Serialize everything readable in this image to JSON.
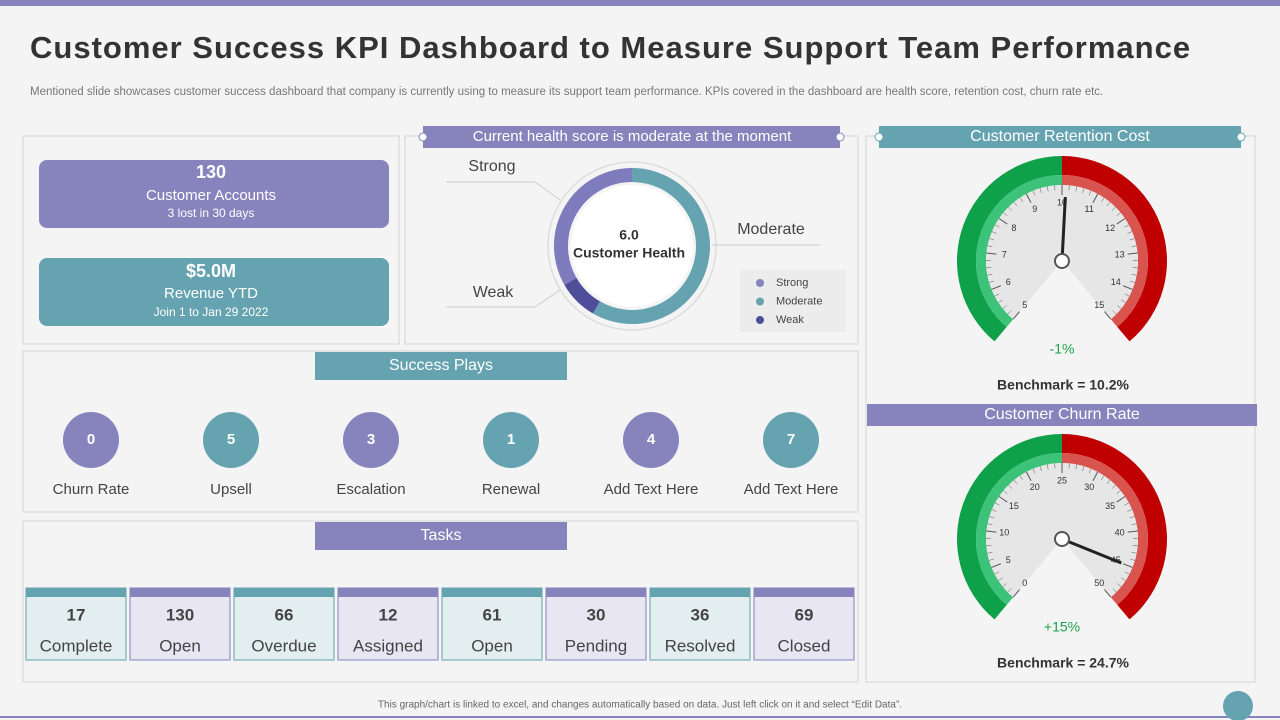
{
  "header": {
    "title": "Customer Success KPI Dashboard to Measure Support Team Performance",
    "subtitle": "Mentioned slide showcases customer success dashboard that company is currently using to measure its support team performance. KPIs covered in the dashboard are health score, retention cost, churn rate etc."
  },
  "kpis": [
    {
      "value": "130",
      "label": "Customer Accounts",
      "note": "3 lost in 30 days"
    },
    {
      "value": "$5.0M",
      "label": "Revenue YTD",
      "note": "Join 1 to Jan 29 2022"
    }
  ],
  "health": {
    "title": "Current health score is moderate at the moment",
    "score": "6.0",
    "score_label": "Customer Health",
    "callouts": {
      "strong": "Strong",
      "moderate": "Moderate",
      "weak": "Weak"
    },
    "legend": [
      "Strong",
      "Moderate",
      "Weak"
    ]
  },
  "success_plays": {
    "title": "Success Plays",
    "items": [
      {
        "value": 0,
        "label": "Churn Rate"
      },
      {
        "value": 5,
        "label": "Upsell"
      },
      {
        "value": 3,
        "label": "Escalation"
      },
      {
        "value": 1,
        "label": "Renewal"
      },
      {
        "value": 4,
        "label": "Add Text Here"
      },
      {
        "value": 7,
        "label": "Add Text Here"
      }
    ]
  },
  "tasks": {
    "title": "Tasks",
    "items": [
      {
        "value": 17,
        "label": "Complete"
      },
      {
        "value": 130,
        "label": "Open"
      },
      {
        "value": 66,
        "label": "Overdue"
      },
      {
        "value": 12,
        "label": "Assigned"
      },
      {
        "value": 61,
        "label": "Open"
      },
      {
        "value": 30,
        "label": "Pending"
      },
      {
        "value": 36,
        "label": "Resolved"
      },
      {
        "value": 69,
        "label": "Closed"
      }
    ]
  },
  "retention": {
    "title": "Customer Retention Cost",
    "ticks": [
      5,
      6,
      7,
      8,
      9,
      10,
      11,
      12,
      13,
      14,
      15
    ],
    "delta": "-1%",
    "benchmark": "Benchmark = 10.2%"
  },
  "churn": {
    "title": "Customer Churn Rate",
    "ticks": [
      0,
      5,
      10,
      15,
      20,
      25,
      30,
      35,
      40,
      45,
      50
    ],
    "delta": "+15%",
    "benchmark": "Benchmark = 24.7%"
  },
  "footer": "This graph/chart is linked to excel, and changes automatically based on data. Just left click on it and select “Edit Data”."
}
